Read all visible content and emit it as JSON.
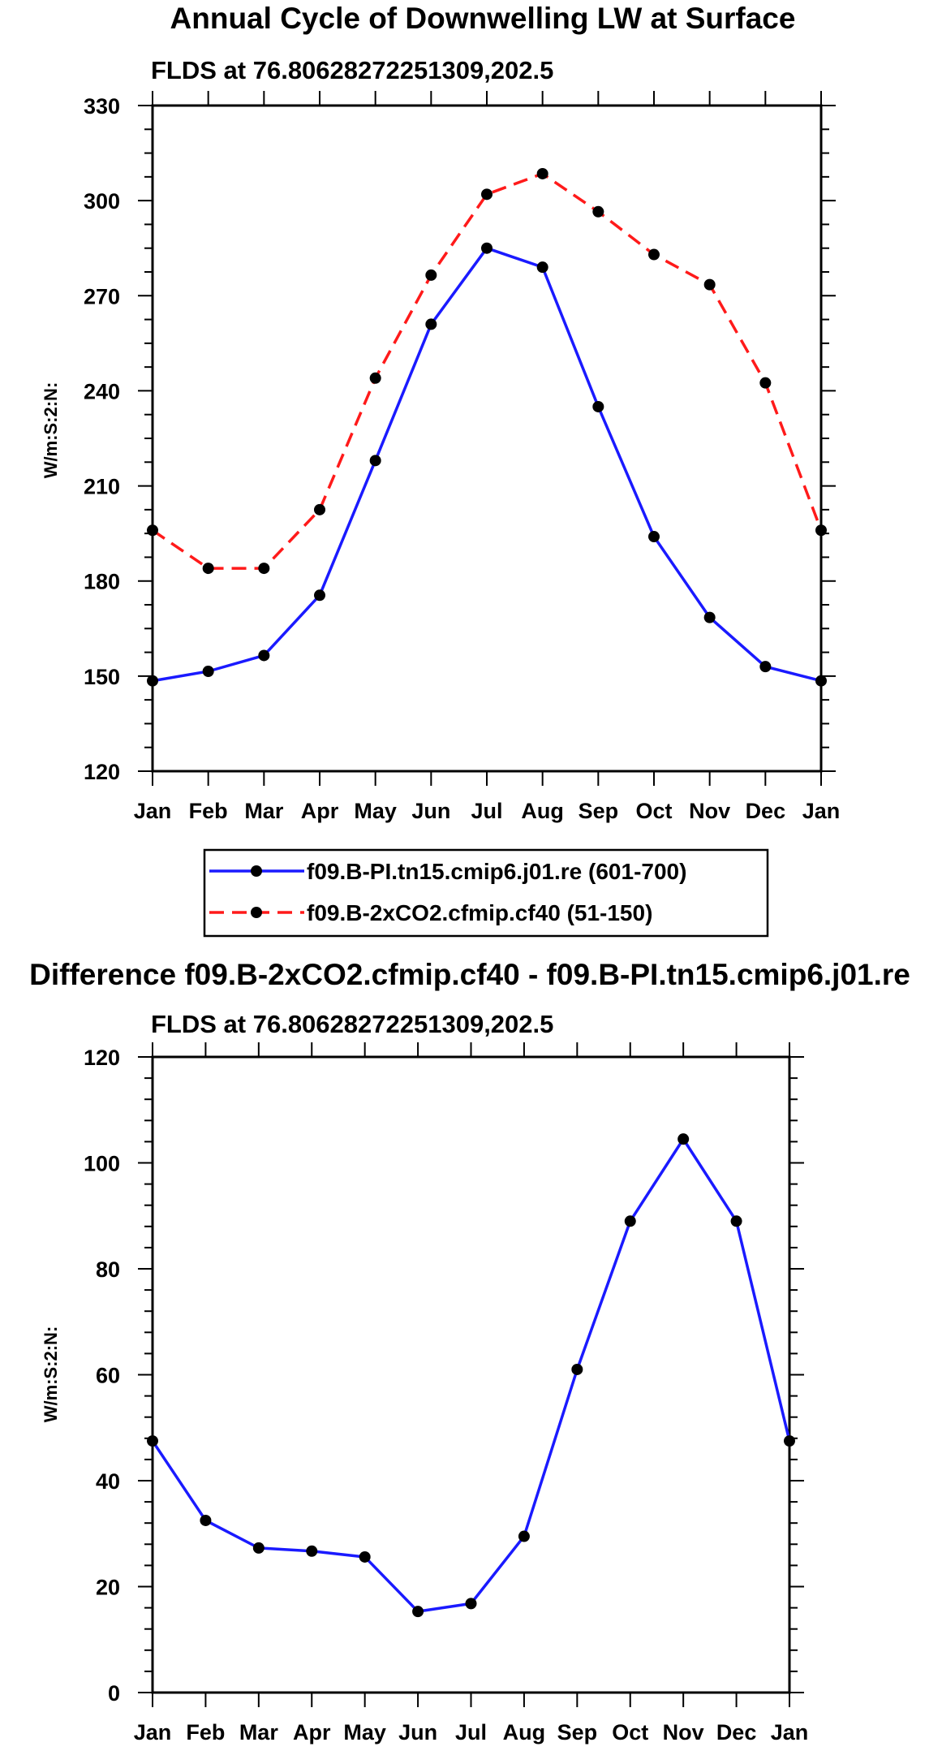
{
  "chart_data": [
    {
      "type": "line",
      "title": "Annual Cycle of Downwelling LW at Surface",
      "subtitle": "FLDS at 76.80628272251309,202.5",
      "xlabel": "",
      "ylabel": "W/m:S:2:N:",
      "categories": [
        "Jan",
        "Feb",
        "Mar",
        "Apr",
        "May",
        "Jun",
        "Jul",
        "Aug",
        "Sep",
        "Oct",
        "Nov",
        "Dec",
        "Jan"
      ],
      "ylim": [
        120,
        330
      ],
      "yticks": [
        "120",
        "150",
        "180",
        "210",
        "240",
        "270",
        "300",
        "330"
      ],
      "ytick_values": [
        120,
        150,
        180,
        210,
        240,
        270,
        300,
        330
      ],
      "series": [
        {
          "name": "f09.B-PI.tn15.cmip6.j01.re (601-700)",
          "color": "#1a1aff",
          "dashed": false,
          "values": [
            148.5,
            151.5,
            156.5,
            175.5,
            218,
            261,
            285,
            279,
            235,
            194,
            168.5,
            153,
            148.5
          ]
        },
        {
          "name": "f09.B-2xCO2.cfmip.cf40 (51-150)",
          "color": "#ff1a1a",
          "dashed": true,
          "values": [
            196,
            184,
            184,
            202.5,
            244,
            276.5,
            302,
            308.5,
            296.5,
            283,
            273.5,
            242.5,
            196
          ]
        }
      ]
    },
    {
      "type": "line",
      "title": "Difference f09.B-2xCO2.cfmip.cf40 - f09.B-PI.tn15.cmip6.j01.re",
      "subtitle": "FLDS at 76.80628272251309,202.5",
      "xlabel": "",
      "ylabel": "W/m:S:2:N:",
      "categories": [
        "Jan",
        "Feb",
        "Mar",
        "Apr",
        "May",
        "Jun",
        "Jul",
        "Aug",
        "Sep",
        "Oct",
        "Nov",
        "Dec",
        "Jan"
      ],
      "ylim": [
        0,
        120
      ],
      "yticks": [
        "0",
        "20",
        "40",
        "60",
        "80",
        "100",
        "120"
      ],
      "ytick_values": [
        0,
        20,
        40,
        60,
        80,
        100,
        120
      ],
      "series": [
        {
          "name": "difference",
          "color": "#1a1aff",
          "dashed": false,
          "values": [
            47.5,
            32.5,
            27.3,
            26.7,
            25.6,
            15.3,
            16.8,
            29.5,
            61,
            89,
            104.5,
            89,
            47.5
          ]
        }
      ]
    }
  ]
}
